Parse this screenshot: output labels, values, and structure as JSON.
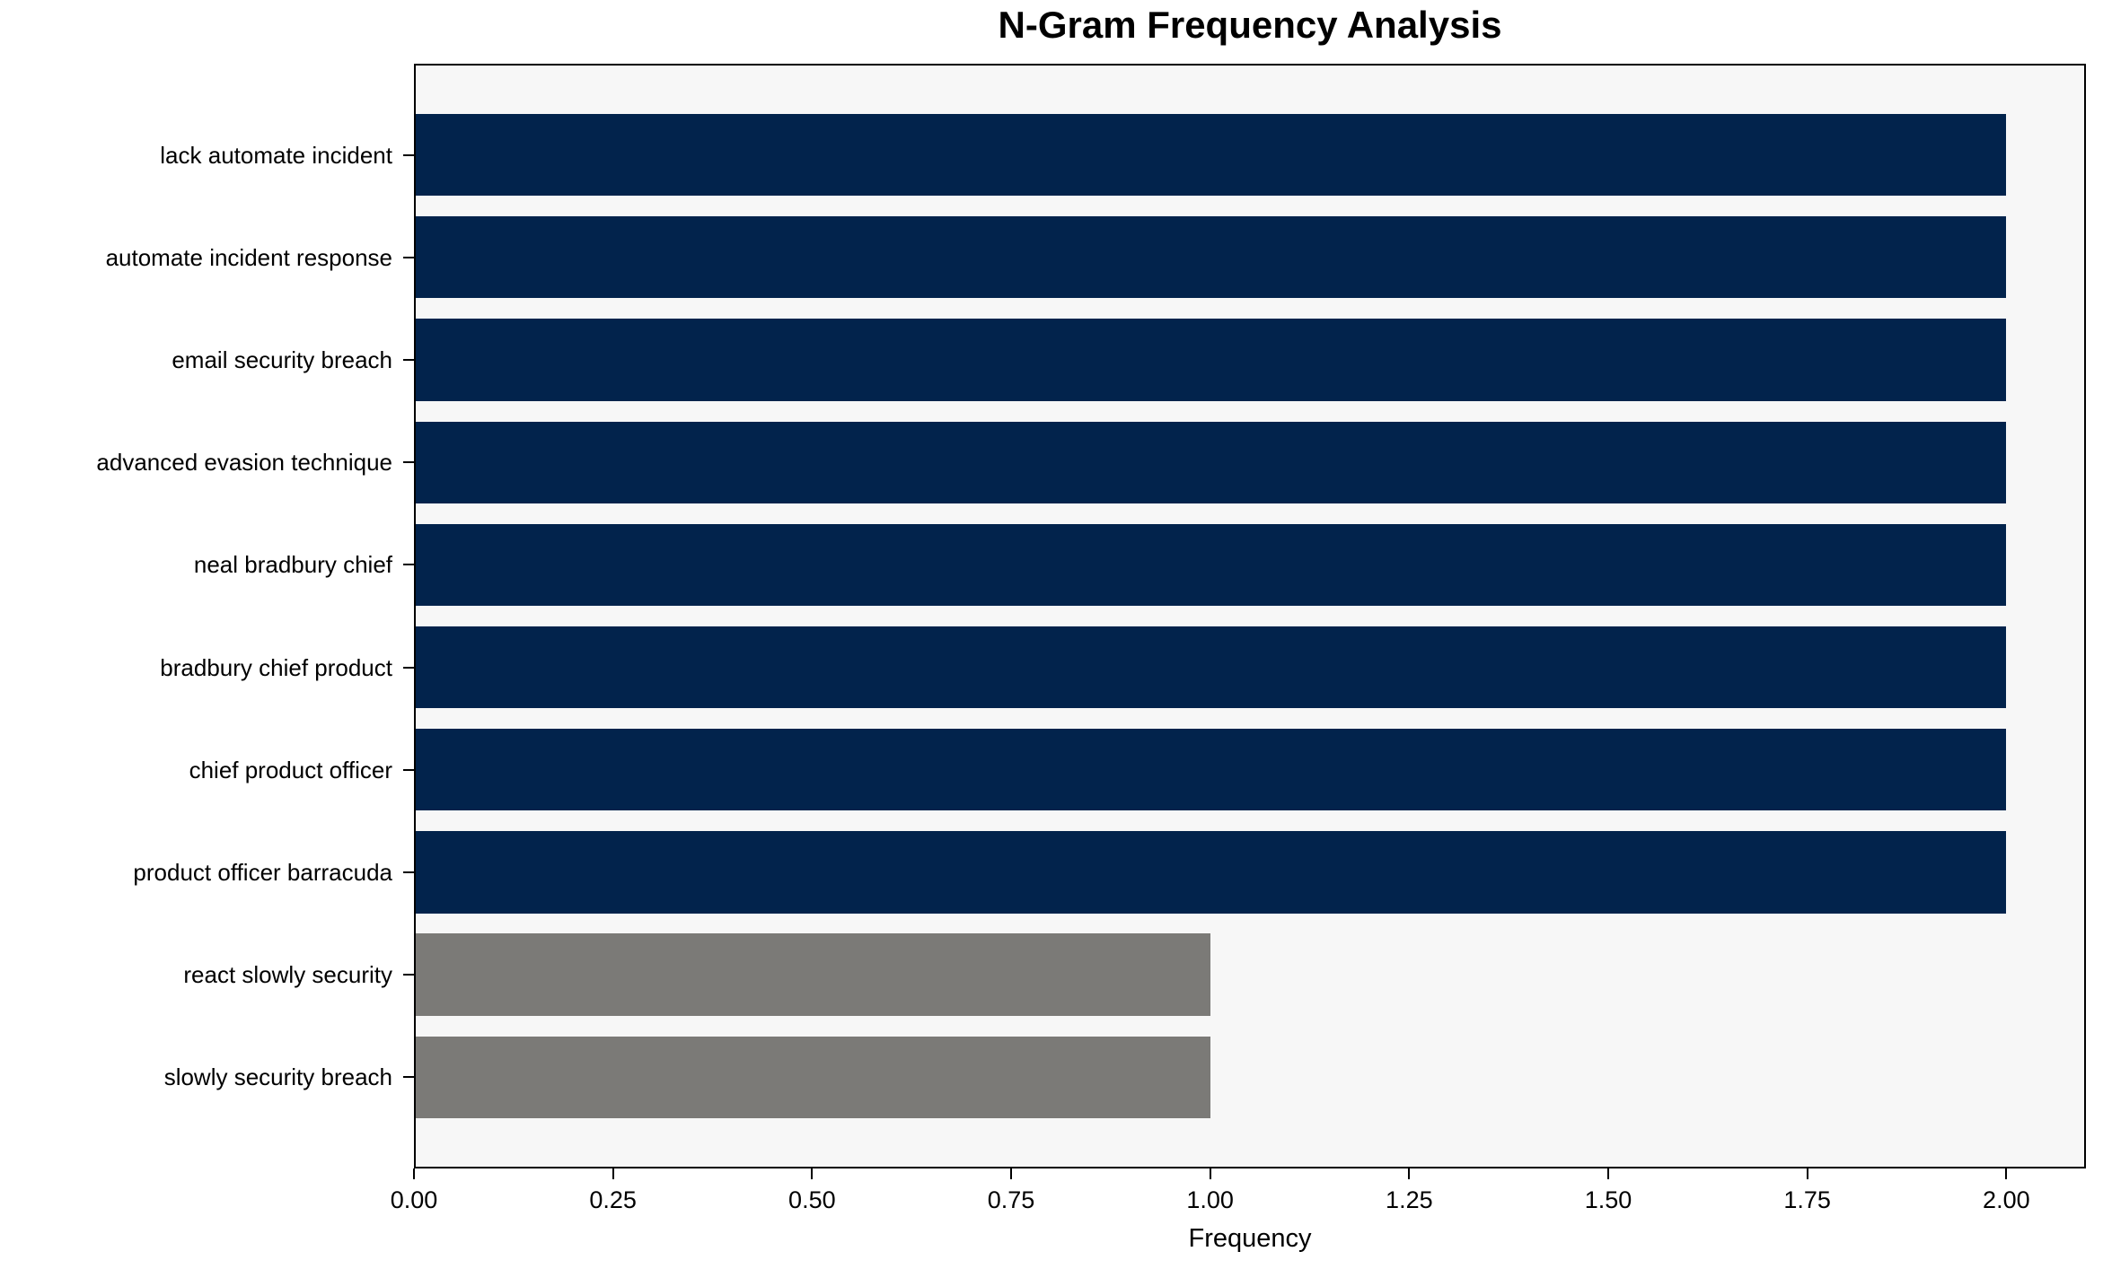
{
  "page": {
    "background": "#ffffff"
  },
  "chart_data": {
    "type": "bar",
    "orientation": "horizontal",
    "title": "N-Gram Frequency Analysis",
    "xlabel": "Frequency",
    "ylabel": "",
    "categories": [
      "lack automate incident",
      "automate incident response",
      "email security breach",
      "advanced evasion technique",
      "neal bradbury chief",
      "bradbury chief product",
      "chief product officer",
      "product officer barracuda",
      "react slowly security",
      "slowly security breach"
    ],
    "values": [
      2,
      2,
      2,
      2,
      2,
      2,
      2,
      2,
      1,
      1
    ],
    "bar_colors": [
      "#02234c",
      "#02234c",
      "#02234c",
      "#02234c",
      "#02234c",
      "#02234c",
      "#02234c",
      "#02234c",
      "#7b7a77",
      "#7b7a77"
    ],
    "xlim": [
      0,
      2.1
    ],
    "xticks": [
      0,
      0.25,
      0.5,
      0.75,
      1.0,
      1.25,
      1.5,
      1.75,
      2.0
    ],
    "xtick_labels": [
      "0.00",
      "0.25",
      "0.50",
      "0.75",
      "1.00",
      "1.25",
      "1.50",
      "1.75",
      "2.00"
    ],
    "grid": false,
    "legend": "none",
    "colors": {
      "primary_bar": "#02234c",
      "secondary_bar": "#7b7a77",
      "plot_background": "#f7f7f7",
      "axis": "#000000",
      "text": "#000000"
    }
  }
}
